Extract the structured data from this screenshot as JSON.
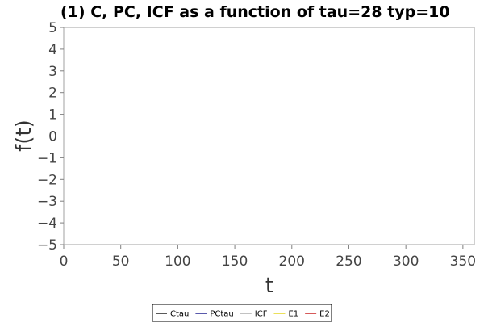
{
  "chart_data": {
    "type": "line",
    "title": "(1) C, PC, ICF as a function of tau=28 typ=10",
    "xlabel": "t",
    "ylabel": "f(t)",
    "xlim": [
      0,
      360
    ],
    "ylim": [
      -5,
      5
    ],
    "x_ticks": [
      0,
      50,
      100,
      150,
      200,
      250,
      300,
      350
    ],
    "y_ticks": [
      5,
      4,
      3,
      2,
      1,
      0,
      -1,
      -2,
      -3,
      -4,
      -5
    ],
    "y_tick_labels": [
      "5",
      "4",
      "3",
      "2",
      "1",
      "0",
      "−1",
      "−2",
      "−3",
      "−4",
      "−5"
    ],
    "grid": false,
    "legend_position": "bottom-center",
    "series": [
      {
        "name": "Ctau",
        "color": "#000000",
        "x": [],
        "y": []
      },
      {
        "name": "PCtau",
        "color": "#000080",
        "x": [],
        "y": []
      },
      {
        "name": "ICF",
        "color": "#a0a0a0",
        "x": [],
        "y": []
      },
      {
        "name": "E1",
        "color": "#e0d000",
        "x": [],
        "y": []
      },
      {
        "name": "E2",
        "color": "#c00000",
        "x": [],
        "y": []
      }
    ]
  }
}
